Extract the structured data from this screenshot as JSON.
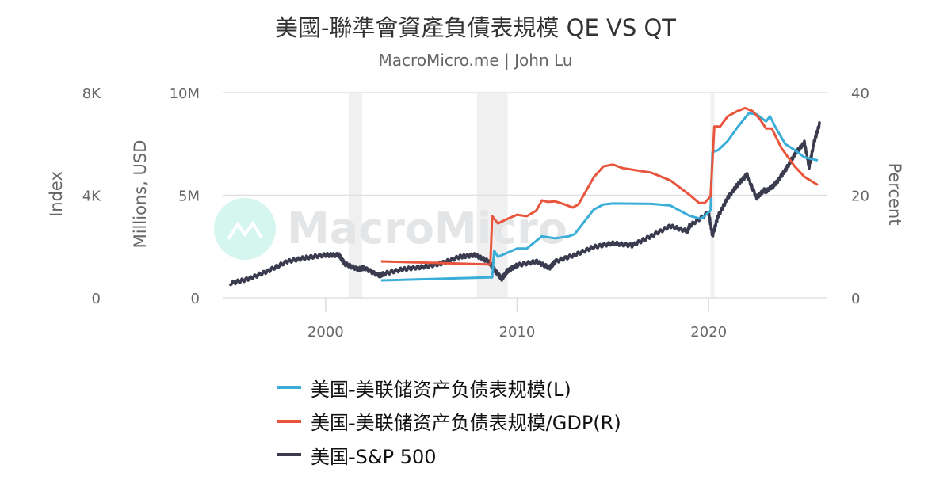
{
  "chart_data": {
    "type": "line",
    "title": "美國-聯準會資產負債表規模 QE VS QT",
    "subtitle": "MacroMicro.me | John Lu",
    "watermark": "MacroMicro",
    "xlim": [
      1994.67,
      2026.2
    ],
    "x_ticks": [
      "2000",
      "2010",
      "2020"
    ],
    "x_tick_values": [
      2000,
      2010,
      2020
    ],
    "grid": "horizontal",
    "legend_position": "bottom",
    "recession_bands": [
      [
        2001.2,
        2001.9
      ],
      [
        2007.9,
        2009.5
      ],
      [
        2020.1,
        2020.3
      ]
    ],
    "axes": {
      "index": {
        "label": "Index",
        "ylim": [
          0,
          8000
        ],
        "ticks": [
          "0",
          "4K",
          "8K"
        ]
      },
      "millions": {
        "label": "Millions, USD",
        "ylim": [
          0,
          10000000
        ],
        "ticks": [
          "0",
          "5M",
          "10M"
        ]
      },
      "percent": {
        "label": "Percent",
        "ylim": [
          0,
          40
        ],
        "ticks": [
          "0",
          "20",
          "40"
        ]
      }
    },
    "series": [
      {
        "name": "美国-美联储资产负债表规模(L)",
        "axis": "millions",
        "color": "#3aaed8",
        "x": [
          2002.9,
          2008.7,
          2008.8,
          2009,
          2009.5,
          2010,
          2010.5,
          2011.3,
          2012,
          2012.7,
          2013,
          2014,
          2014.5,
          2015,
          2017,
          2018,
          2019,
          2019.6,
          2020.1,
          2020.2,
          2020.5,
          2021,
          2021.5,
          2022.1,
          2022.5,
          2023,
          2023.2,
          2023.5,
          2024,
          2024.5,
          2025,
          2025.7
        ],
        "y": [
          850000,
          1000000,
          2300000,
          2000000,
          2200000,
          2400000,
          2400000,
          3000000,
          2900000,
          3000000,
          3100000,
          4300000,
          4550000,
          4600000,
          4580000,
          4500000,
          4000000,
          3850000,
          4250000,
          7100000,
          7200000,
          7650000,
          8300000,
          9000000,
          8950000,
          8600000,
          8850000,
          8300000,
          7500000,
          7200000,
          6850000,
          6700000
        ]
      },
      {
        "name": "美国-美联储资产负债表规模/GDP(R)",
        "axis": "percent",
        "color": "#e8553c",
        "x": [
          2002.9,
          2008.6,
          2008.7,
          2009,
          2009.5,
          2010,
          2010.5,
          2011,
          2011.3,
          2011.6,
          2012,
          2012.5,
          2012.9,
          2013.2,
          2014,
          2014.5,
          2015,
          2015.5,
          2017,
          2018,
          2019,
          2019.5,
          2019.8,
          2020.1,
          2020.3,
          2020.6,
          2021,
          2021.5,
          2021.9,
          2022.3,
          2022.7,
          2023,
          2023.3,
          2023.8,
          2024.5,
          2025,
          2025.7
        ],
        "y": [
          7.1,
          6.5,
          15.9,
          14.5,
          15.4,
          16.2,
          15.9,
          17,
          19,
          18.7,
          18.8,
          18.2,
          17.6,
          18.2,
          23.5,
          25.6,
          26,
          25.3,
          24.4,
          22.9,
          20.1,
          18.5,
          18.5,
          19.8,
          33.4,
          33.4,
          35.4,
          36.4,
          37,
          36.4,
          34.7,
          33,
          33,
          29.2,
          25.6,
          23.6,
          22
        ]
      },
      {
        "name": "美国-S&P 500",
        "axis": "index",
        "color": "#3a3b4e",
        "x": [
          1995,
          1996,
          1997,
          1998,
          1999,
          2000,
          2000.7,
          2001,
          2001.7,
          2002,
          2002.8,
          2003,
          2004,
          2005,
          2006,
          2007,
          2007.8,
          2008.5,
          2008.9,
          2009.2,
          2009.5,
          2010,
          2011,
          2011.7,
          2012,
          2013,
          2014,
          2015,
          2016,
          2017,
          2018,
          2018.9,
          2019,
          2020,
          2020.2,
          2020.5,
          2021,
          2021.5,
          2022,
          2022.5,
          2022.9,
          2023,
          2023.5,
          2024,
          2024.5,
          2025,
          2025.25,
          2025.5,
          2025.8
        ],
        "y": [
          560,
          740,
          1050,
          1420,
          1570,
          1670,
          1670,
          1330,
          1110,
          1170,
          860,
          930,
          1110,
          1200,
          1330,
          1600,
          1670,
          1420,
          1020,
          740,
          1050,
          1270,
          1420,
          1170,
          1420,
          1670,
          1980,
          2130,
          2040,
          2410,
          2800,
          2590,
          2800,
          3330,
          2410,
          3200,
          3900,
          4400,
          4800,
          3900,
          4200,
          4150,
          4450,
          4970,
          5600,
          6050,
          5100,
          6050,
          6800
        ]
      }
    ]
  }
}
